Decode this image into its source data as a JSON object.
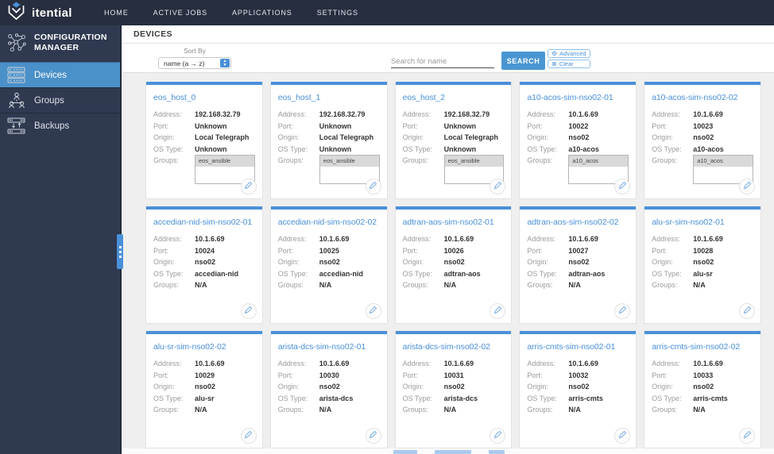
{
  "navbar": {
    "brand": "itential",
    "items": [
      "HOME",
      "ACTIVE JOBS",
      "APPLICATIONS",
      "SETTINGS"
    ]
  },
  "sidebar": {
    "title": "CONFIGURATION MANAGER",
    "items": [
      {
        "label": "Devices",
        "icon": "devices-icon",
        "active": true
      },
      {
        "label": "Groups",
        "icon": "groups-icon",
        "active": false
      },
      {
        "label": "Backups",
        "icon": "backups-icon",
        "active": false
      }
    ]
  },
  "page": {
    "title": "DEVICES"
  },
  "toolbar": {
    "sort_label": "Sort By",
    "sort_value": "name (a → z)",
    "search_placeholder": "Search for name",
    "search_button": "SEARCH",
    "advanced_label": "Advanced",
    "clear_label": "Clear"
  },
  "card_labels": {
    "address": "Address:",
    "port": "Port:",
    "origin": "Origin:",
    "os_type": "OS Type:",
    "groups": "Groups:"
  },
  "devices": [
    {
      "name": "eos_host_0",
      "address": "192.168.32.79",
      "port": "Unknown",
      "origin": "Local Telegraph",
      "os_type": "Unknown",
      "groups": [
        "eos_ansible"
      ]
    },
    {
      "name": "eos_host_1",
      "address": "192.168.32.79",
      "port": "Unknown",
      "origin": "Local Telegraph",
      "os_type": "Unknown",
      "groups": [
        "eos_ansible"
      ]
    },
    {
      "name": "eos_host_2",
      "address": "192.168.32.79",
      "port": "Unknown",
      "origin": "Local Telegraph",
      "os_type": "Unknown",
      "groups": [
        "eos_ansible"
      ]
    },
    {
      "name": "a10-acos-sim-nso02-01",
      "address": "10.1.6.69",
      "port": "10022",
      "origin": "nso02",
      "os_type": "a10-acos",
      "groups": [
        "a10_acos"
      ]
    },
    {
      "name": "a10-acos-sim-nso02-02",
      "address": "10.1.6.69",
      "port": "10023",
      "origin": "nso02",
      "os_type": "a10-acos",
      "groups": [
        "a10_acos"
      ]
    },
    {
      "name": "accedian-nid-sim-nso02-01",
      "address": "10.1.6.69",
      "port": "10024",
      "origin": "nso02",
      "os_type": "accedian-nid",
      "groups": "N/A"
    },
    {
      "name": "accedian-nid-sim-nso02-02",
      "address": "10.1.6.69",
      "port": "10025",
      "origin": "nso02",
      "os_type": "accedian-nid",
      "groups": "N/A"
    },
    {
      "name": "adtran-aos-sim-nso02-01",
      "address": "10.1.6.69",
      "port": "10026",
      "origin": "nso02",
      "os_type": "adtran-aos",
      "groups": "N/A"
    },
    {
      "name": "adtran-aos-sim-nso02-02",
      "address": "10.1.6.69",
      "port": "10027",
      "origin": "nso02",
      "os_type": "adtran-aos",
      "groups": "N/A"
    },
    {
      "name": "alu-sr-sim-nso02-01",
      "address": "10.1.6.69",
      "port": "10028",
      "origin": "nso02",
      "os_type": "alu-sr",
      "groups": "N/A"
    },
    {
      "name": "alu-sr-sim-nso02-02",
      "address": "10.1.6.69",
      "port": "10029",
      "origin": "nso02",
      "os_type": "alu-sr",
      "groups": "N/A"
    },
    {
      "name": "arista-dcs-sim-nso02-01",
      "address": "10.1.6.69",
      "port": "10030",
      "origin": "nso02",
      "os_type": "arista-dcs",
      "groups": "N/A"
    },
    {
      "name": "arista-dcs-sim-nso02-02",
      "address": "10.1.6.69",
      "port": "10031",
      "origin": "nso02",
      "os_type": "arista-dcs",
      "groups": "N/A"
    },
    {
      "name": "arris-cmts-sim-nso02-01",
      "address": "10.1.6.69",
      "port": "10032",
      "origin": "nso02",
      "os_type": "arris-cmts",
      "groups": "N/A"
    },
    {
      "name": "arris-cmts-sim-nso02-02",
      "address": "10.1.6.69",
      "port": "10033",
      "origin": "nso02",
      "os_type": "arris-cmts",
      "groups": "N/A"
    }
  ],
  "colors": {
    "accent": "#4a90d9",
    "active_sidebar_item": "#4a90c9",
    "navbar_bg": "#272e3f",
    "sidebar_bg": "#2f3950",
    "content_bg": "#efefef"
  }
}
